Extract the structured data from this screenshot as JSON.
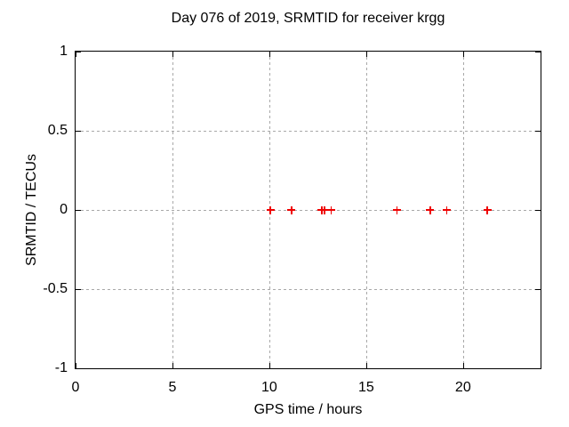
{
  "chart_data": {
    "type": "scatter",
    "title": "Day 076 of 2019, SRMTID for receiver krgg",
    "xlabel": "GPS time / hours",
    "ylabel": "SRMTID / TECUs",
    "xlim": [
      0,
      24
    ],
    "ylim": [
      -1,
      1
    ],
    "xticks": [
      0,
      5,
      10,
      15,
      20
    ],
    "xtick_labels": [
      "0",
      "5",
      "10",
      "15",
      "20"
    ],
    "yticks": [
      1,
      0.5,
      0,
      -0.5,
      -1
    ],
    "ytick_labels": [
      "1",
      "0.5",
      "0",
      "-0.5",
      "-1"
    ],
    "grid": true,
    "grid_style": "dotted",
    "grid_color": "#a8a8a8",
    "axis_color": "#000000",
    "background_color": "#ffffff",
    "legend": "none",
    "series": [
      {
        "name": "SRMTID",
        "marker": "plus",
        "color": "#ee0000",
        "x": [
          10.05,
          11.15,
          12.7,
          12.85,
          13.2,
          16.6,
          18.3,
          19.15,
          21.25
        ],
        "y": [
          0,
          0,
          0,
          0,
          0,
          0,
          0,
          0,
          0
        ]
      }
    ]
  }
}
